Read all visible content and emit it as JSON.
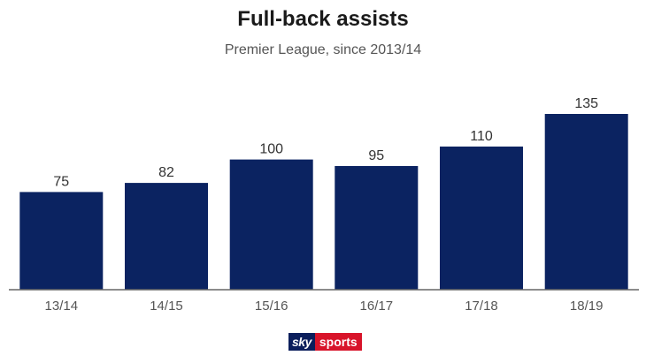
{
  "header": {
    "title": "Full-back assists",
    "subtitle": "Premier League, since 2013/14"
  },
  "logo": {
    "part1": "sky",
    "part2": "sports",
    "colors": {
      "sky_bg": "#0b1e5c",
      "sports_bg": "#d8142a"
    }
  },
  "chart_data": {
    "type": "bar",
    "title": "Full-back assists",
    "subtitle": "Premier League, since 2013/14",
    "categories": [
      "13/14",
      "14/15",
      "15/16",
      "16/17",
      "17/18",
      "18/19"
    ],
    "values": [
      75,
      82,
      100,
      95,
      110,
      135
    ],
    "ylim": [
      0,
      135
    ],
    "grid": false,
    "bar_color": "#0b2361",
    "data_labels": true
  }
}
